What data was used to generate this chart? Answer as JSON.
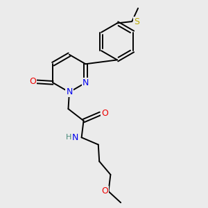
{
  "bg_color": "#ebebeb",
  "atom_colors": {
    "C": "#000000",
    "N": "#0000ee",
    "O": "#ee0000",
    "S": "#bbaa00",
    "H": "#448877"
  },
  "bond_color": "#000000",
  "bond_width": 1.4,
  "font_size_atom": 9,
  "font_size_h": 8
}
